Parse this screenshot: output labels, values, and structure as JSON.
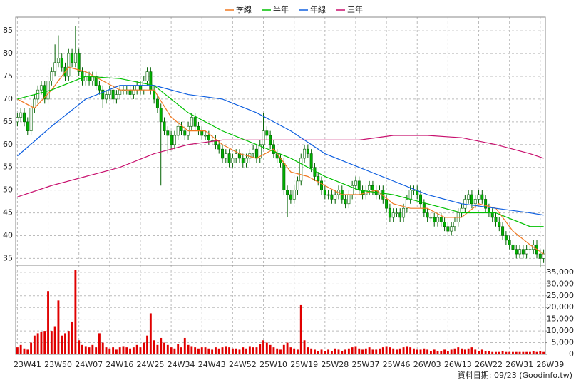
{
  "chart_data": {
    "type": "candlestick",
    "categories": [
      "23W41",
      null,
      null,
      null,
      null,
      null,
      null,
      null,
      null,
      "23W50",
      null,
      null,
      null,
      null,
      null,
      null,
      null,
      null,
      "24W07",
      null,
      null,
      null,
      null,
      null,
      null,
      null,
      null,
      "24W16",
      null,
      null,
      null,
      null,
      null,
      null,
      null,
      null,
      "24W25",
      null,
      null,
      null,
      null,
      null,
      null,
      null,
      null,
      "24W34",
      null,
      null,
      null,
      null,
      null,
      null,
      null,
      null,
      "24W43",
      null,
      null,
      null,
      null,
      null,
      null,
      null,
      null,
      "24W52",
      null,
      null,
      null,
      null,
      null,
      null,
      null,
      null,
      "25W10",
      null,
      null,
      null,
      null,
      null,
      null,
      null,
      null,
      "25W19",
      null,
      null,
      null,
      null,
      null,
      null,
      null,
      null,
      "25W28",
      null,
      null,
      null,
      null,
      null,
      null,
      null,
      null,
      "25W37",
      null,
      null,
      null,
      null,
      null,
      null,
      null,
      null,
      "25W46",
      null,
      null,
      null,
      null,
      null,
      null,
      null,
      null,
      "26W03",
      null,
      null,
      null,
      null,
      null,
      null,
      null,
      null,
      "26W13",
      null,
      null,
      null,
      null,
      null,
      null,
      null,
      null,
      "26W22",
      null,
      null,
      null,
      null,
      null,
      null,
      null,
      null,
      "26W31",
      null,
      null,
      null,
      null,
      null,
      null,
      null,
      null,
      "26W39",
      null
    ],
    "ohlc": {
      "open": [
        65,
        66,
        67,
        65,
        63,
        68,
        70,
        72,
        73,
        70,
        74,
        76,
        78,
        79,
        77,
        75,
        80,
        78,
        80,
        76,
        74,
        75,
        74,
        75,
        73,
        72,
        70,
        71,
        72,
        70,
        71,
        72,
        72,
        72,
        71,
        72,
        73,
        72,
        74,
        76,
        72,
        70,
        68,
        65,
        63,
        62,
        60,
        62,
        64,
        63,
        62,
        64,
        66,
        64,
        63,
        62,
        62,
        61,
        61,
        60,
        59,
        57,
        58,
        56,
        57,
        58,
        57,
        56,
        57,
        58,
        59,
        57,
        60,
        63,
        62,
        60,
        58,
        57,
        56,
        50,
        49,
        48,
        50,
        52,
        57,
        59,
        58,
        55,
        53,
        52,
        50,
        49,
        49,
        48,
        49,
        50,
        48,
        47,
        49,
        51,
        52,
        50,
        49,
        50,
        51,
        50,
        49,
        50,
        48,
        46,
        44,
        45,
        45,
        44,
        46,
        48,
        50,
        50,
        49,
        47,
        45,
        44,
        44,
        43,
        44,
        43,
        42,
        41,
        42,
        43,
        45,
        46,
        48,
        49,
        47,
        48,
        49,
        48,
        46,
        45,
        44,
        43,
        42,
        40,
        39,
        38,
        37,
        36,
        37,
        36,
        37,
        37,
        38,
        36,
        35
      ],
      "high": [
        67,
        68,
        68,
        66,
        69,
        71,
        73,
        74,
        74,
        75,
        77,
        82,
        84,
        80,
        78,
        81,
        81,
        86,
        81,
        77,
        76,
        76,
        76,
        76,
        74,
        73,
        72,
        73,
        73,
        72,
        73,
        73,
        73,
        73,
        73,
        74,
        74,
        75,
        77,
        77,
        73,
        71,
        69,
        66,
        64,
        63,
        63,
        65,
        65,
        64,
        65,
        67,
        67,
        65,
        64,
        63,
        63,
        62,
        62,
        61,
        60,
        59,
        59,
        58,
        59,
        59,
        58,
        58,
        59,
        60,
        60,
        61,
        67,
        64,
        63,
        61,
        59,
        58,
        57,
        51,
        50,
        51,
        53,
        58,
        60,
        60,
        59,
        56,
        54,
        53,
        51,
        50,
        50,
        50,
        51,
        51,
        49,
        50,
        52,
        53,
        53,
        51,
        51,
        52,
        52,
        51,
        51,
        51,
        49,
        47,
        46,
        46,
        46,
        47,
        49,
        51,
        51,
        51,
        50,
        48,
        46,
        45,
        45,
        45,
        45,
        44,
        43,
        43,
        44,
        46,
        47,
        49,
        50,
        50,
        49,
        50,
        50,
        49,
        47,
        46,
        45,
        44,
        43,
        41,
        40,
        39,
        38,
        38,
        38,
        38,
        38,
        39,
        39,
        37,
        37
      ],
      "low": [
        64,
        65,
        64,
        62,
        62,
        67,
        69,
        71,
        69,
        69,
        73,
        75,
        77,
        76,
        74,
        74,
        77,
        77,
        75,
        73,
        73,
        73,
        73,
        72,
        71,
        68,
        69,
        70,
        69,
        69,
        70,
        71,
        71,
        70,
        70,
        71,
        71,
        71,
        73,
        71,
        69,
        67,
        51,
        62,
        58,
        59,
        59,
        61,
        62,
        61,
        61,
        63,
        63,
        62,
        61,
        61,
        60,
        60,
        59,
        58,
        56,
        56,
        55,
        55,
        56,
        56,
        55,
        55,
        56,
        57,
        56,
        56,
        59,
        61,
        59,
        57,
        56,
        55,
        49,
        44,
        47,
        47,
        49,
        51,
        56,
        57,
        54,
        52,
        51,
        49,
        48,
        48,
        47,
        47,
        48,
        47,
        46,
        46,
        48,
        50,
        49,
        48,
        48,
        49,
        49,
        48,
        48,
        47,
        45,
        43,
        43,
        44,
        43,
        43,
        45,
        47,
        49,
        48,
        46,
        44,
        43,
        43,
        42,
        42,
        42,
        41,
        40,
        40,
        41,
        42,
        44,
        45,
        47,
        46,
        46,
        47,
        47,
        45,
        44,
        43,
        42,
        41,
        39,
        38,
        37,
        36,
        35,
        35,
        35,
        35,
        36,
        36,
        35,
        33,
        34
      ],
      "close": [
        66,
        67,
        65,
        63,
        68,
        70,
        72,
        73,
        70,
        74,
        76,
        78,
        79,
        77,
        75,
        80,
        78,
        80,
        76,
        74,
        75,
        74,
        75,
        73,
        72,
        70,
        71,
        72,
        70,
        71,
        72,
        72,
        72,
        71,
        72,
        73,
        72,
        74,
        76,
        72,
        70,
        68,
        65,
        63,
        62,
        60,
        62,
        64,
        63,
        62,
        64,
        66,
        64,
        63,
        62,
        62,
        61,
        61,
        60,
        59,
        57,
        58,
        56,
        57,
        58,
        57,
        56,
        57,
        58,
        59,
        57,
        60,
        63,
        62,
        60,
        58,
        57,
        56,
        50,
        49,
        48,
        50,
        52,
        57,
        59,
        58,
        55,
        53,
        52,
        50,
        49,
        49,
        48,
        49,
        50,
        48,
        47,
        49,
        51,
        52,
        50,
        49,
        50,
        51,
        50,
        49,
        50,
        48,
        46,
        44,
        45,
        45,
        44,
        46,
        48,
        50,
        50,
        49,
        47,
        45,
        44,
        44,
        43,
        44,
        43,
        42,
        41,
        42,
        43,
        45,
        46,
        48,
        49,
        47,
        48,
        49,
        48,
        46,
        45,
        44,
        43,
        42,
        40,
        39,
        38,
        37,
        36,
        37,
        36,
        37,
        37,
        38,
        36,
        35,
        36
      ],
      "up_color": "#ffffff",
      "down_color": "#00b000",
      "outline": "#006000"
    },
    "volume": {
      "color": "#e00000",
      "axis": "y2",
      "values": [
        3000,
        4000,
        2500,
        2000,
        5000,
        8000,
        9000,
        9500,
        10000,
        27000,
        10000,
        12000,
        23000,
        8000,
        9000,
        10000,
        14000,
        36000,
        6000,
        4000,
        3500,
        3000,
        4000,
        3000,
        9000,
        5000,
        3000,
        2500,
        3000,
        2000,
        3000,
        3500,
        3000,
        2500,
        3000,
        4000,
        3000,
        5000,
        8000,
        17500,
        6000,
        4000,
        7000,
        5000,
        4000,
        3000,
        2500,
        4500,
        3000,
        7000,
        4000,
        3500,
        3000,
        2500,
        3000,
        3000,
        2500,
        2000,
        3000,
        2500,
        3000,
        3500,
        3000,
        2500,
        2500,
        2000,
        3000,
        2500,
        3500,
        3000,
        3000,
        4500,
        6000,
        5000,
        4000,
        3000,
        2500,
        2000,
        4000,
        5000,
        3000,
        2500,
        2000,
        21000,
        6000,
        3000,
        2500,
        2000,
        1500,
        2000,
        1500,
        2000,
        1500,
        2500,
        2000,
        1500,
        2000,
        2500,
        3000,
        3500,
        2500,
        2000,
        2500,
        3000,
        2000,
        2000,
        2500,
        3000,
        3500,
        3000,
        2500,
        2000,
        2500,
        3000,
        3500,
        3000,
        2500,
        2000,
        2000,
        2500,
        2000,
        1500,
        2000,
        1500,
        1500,
        2000,
        1500,
        2000,
        2500,
        3000,
        2500,
        2000,
        2500,
        3000,
        2000,
        1500,
        2000,
        1500,
        1500,
        1000,
        1000,
        1000,
        1500,
        1000,
        1000,
        1000,
        1000,
        1000,
        1000,
        1000,
        1000,
        1500,
        1000,
        1500,
        1000
      ]
    },
    "series": [
      {
        "name": "季線",
        "color": "#f07820",
        "x": [
          0,
          5,
          10,
          15,
          20,
          25,
          30,
          35,
          40,
          45,
          50,
          55,
          60,
          65,
          70,
          75,
          80,
          85,
          90,
          95,
          100,
          105,
          110,
          115,
          120,
          125,
          130,
          135,
          140,
          145,
          150,
          154
        ],
        "values": [
          70,
          68,
          72,
          77,
          76,
          74,
          72,
          72,
          72,
          66,
          63,
          63,
          60,
          58,
          57,
          59,
          54,
          53,
          51,
          49,
          49,
          50,
          47,
          46,
          46,
          44,
          44,
          47,
          46,
          41,
          38,
          36
        ]
      },
      {
        "name": "半年",
        "color": "#00c000",
        "x": [
          0,
          10,
          20,
          30,
          40,
          50,
          60,
          70,
          80,
          90,
          100,
          110,
          120,
          130,
          140,
          150,
          154
        ],
        "values": [
          70,
          72,
          75,
          74.5,
          73,
          67,
          63,
          60,
          57,
          53,
          50,
          49,
          47,
          45,
          45,
          42,
          42
        ]
      },
      {
        "name": "年線",
        "color": "#1060e0",
        "x": [
          0,
          10,
          20,
          30,
          40,
          50,
          60,
          70,
          80,
          90,
          100,
          110,
          120,
          130,
          140,
          150,
          154
        ],
        "values": [
          57.5,
          64,
          70,
          73,
          73,
          71,
          70,
          67,
          63,
          58,
          55,
          52,
          49,
          47,
          46,
          45,
          44.5
        ]
      },
      {
        "name": "三年",
        "color": "#c8106e",
        "x": [
          0,
          10,
          20,
          30,
          40,
          50,
          60,
          70,
          80,
          90,
          100,
          110,
          120,
          130,
          140,
          150,
          154
        ],
        "values": [
          48.5,
          51,
          53,
          55,
          58,
          60,
          61,
          61,
          61,
          61,
          61,
          62,
          62,
          61.5,
          60,
          58,
          57
        ]
      }
    ],
    "ylim": [
      33.5,
      88
    ],
    "yticks": [
      35,
      40,
      45,
      50,
      55,
      60,
      65,
      70,
      75,
      80,
      85
    ],
    "y2lim": [
      0,
      38000
    ],
    "y2ticks": [
      0,
      {
        "value": 5000,
        "label": "5,000"
      },
      {
        "value": 10000,
        "label": "10,000"
      },
      {
        "value": 15000,
        "label": "15,000"
      },
      {
        "value": 20000,
        "label": "20,000"
      },
      {
        "value": 25000,
        "label": "25,000"
      },
      {
        "value": 30000,
        "label": "30,000"
      },
      {
        "value": 35000,
        "label": "35,000"
      }
    ],
    "grid": true,
    "note": "資料日期: 09/23 (Goodinfo.tw)"
  }
}
